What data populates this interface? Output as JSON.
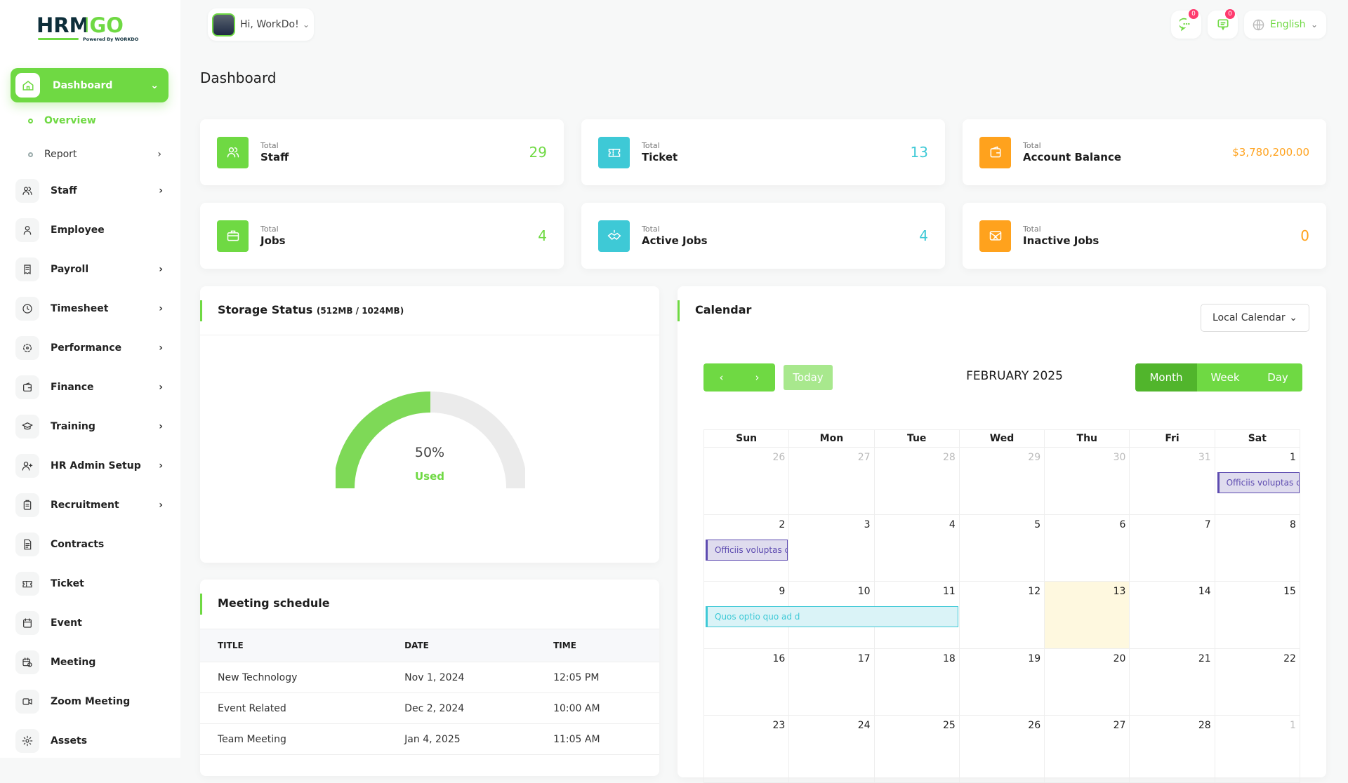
{
  "brand": {
    "name": "HRMGO",
    "tagline": "Powered By WORKDO"
  },
  "header": {
    "greeting": "Hi, WorkDo!",
    "messages_badge": "0",
    "notifications_badge": "0",
    "language": "English"
  },
  "sidebar": {
    "active": {
      "label": "Dashboard",
      "icon": "home-icon"
    },
    "sub_items": [
      {
        "label": "Overview",
        "active": true
      },
      {
        "label": "Report",
        "has_children": true
      }
    ],
    "items": [
      {
        "label": "Staff",
        "icon": "users-icon",
        "has_children": true
      },
      {
        "label": "Employee",
        "icon": "user-icon",
        "has_children": false
      },
      {
        "label": "Payroll",
        "icon": "receipt-icon",
        "has_children": true
      },
      {
        "label": "Timesheet",
        "icon": "clock-icon",
        "has_children": true
      },
      {
        "label": "Performance",
        "icon": "performance-icon",
        "has_children": true
      },
      {
        "label": "Finance",
        "icon": "wallet-icon",
        "has_children": true
      },
      {
        "label": "Training",
        "icon": "graduation-cap-icon",
        "has_children": true
      },
      {
        "label": "HR Admin Setup",
        "icon": "user-plus-icon",
        "has_children": true
      },
      {
        "label": "Recruitment",
        "icon": "clipboard-icon",
        "has_children": true
      },
      {
        "label": "Contracts",
        "icon": "contract-icon",
        "has_children": false
      },
      {
        "label": "Ticket",
        "icon": "ticket-icon",
        "has_children": false
      },
      {
        "label": "Event",
        "icon": "calendar-icon",
        "has_children": false
      },
      {
        "label": "Meeting",
        "icon": "calendar-clock-icon",
        "has_children": false
      },
      {
        "label": "Zoom Meeting",
        "icon": "video-icon",
        "has_children": false
      },
      {
        "label": "Assets",
        "icon": "gear-icon",
        "has_children": false
      }
    ]
  },
  "page": {
    "title": "Dashboard"
  },
  "stats": [
    {
      "small": "Total",
      "label": "Staff",
      "value": "29",
      "color": "#6fd943",
      "icon": "users-icon"
    },
    {
      "small": "Total",
      "label": "Ticket",
      "value": "13",
      "color": "#3ec9d6",
      "icon": "ticket-icon"
    },
    {
      "small": "Total",
      "label": "Account Balance",
      "value": "$3,780,200.00",
      "color": "#ffa21d",
      "icon": "wallet-icon"
    },
    {
      "small": "Total",
      "label": "Jobs",
      "value": "4",
      "color": "#6fd943",
      "icon": "briefcase-icon"
    },
    {
      "small": "Total",
      "label": "Active Jobs",
      "value": "4",
      "color": "#3ec9d6",
      "icon": "handshake-icon"
    },
    {
      "small": "Total",
      "label": "Inactive Jobs",
      "value": "0",
      "color": "#ffa21d",
      "icon": "envelope-x-icon"
    }
  ],
  "storage": {
    "title": "Storage Status",
    "detail": "(512MB / 1024MB)",
    "percent": 50,
    "percent_label": "50%",
    "used_label": "Used"
  },
  "meetings": {
    "title": "Meeting schedule",
    "columns": [
      "TITLE",
      "DATE",
      "TIME"
    ],
    "rows": [
      [
        "New Technology",
        "Nov 1, 2024",
        "12:05 PM"
      ],
      [
        "Event Related",
        "Dec 2, 2024",
        "10:00 AM"
      ],
      [
        "Team Meeting",
        "Jan 4, 2025",
        "11:05 AM"
      ]
    ]
  },
  "calendar": {
    "title": "Calendar",
    "source": "Local Calendar",
    "month_label": "FEBRUARY 2025",
    "today_label": "Today",
    "views": [
      "Month",
      "Week",
      "Day"
    ],
    "active_view": "Month",
    "weekdays": [
      "Sun",
      "Mon",
      "Tue",
      "Wed",
      "Thu",
      "Fri",
      "Sat"
    ],
    "weeks": [
      [
        "26",
        "27",
        "28",
        "29",
        "30",
        "31",
        "1"
      ],
      [
        "2",
        "3",
        "4",
        "5",
        "6",
        "7",
        "8"
      ],
      [
        "9",
        "10",
        "11",
        "12",
        "13",
        "14",
        "15"
      ],
      [
        "16",
        "17",
        "18",
        "19",
        "20",
        "21",
        "22"
      ],
      [
        "23",
        "24",
        "25",
        "26",
        "27",
        "28",
        "1"
      ]
    ],
    "today": "13",
    "events": [
      {
        "title": "Officiis voluptas c",
        "week": 0,
        "start": 6,
        "span": 1,
        "color": "purple"
      },
      {
        "title": "Officiis voluptas c",
        "week": 1,
        "start": 0,
        "span": 1,
        "color": "purple"
      },
      {
        "title": "Quos optio quo ad d",
        "week": 2,
        "start": 0,
        "span": 3,
        "color": "cyan"
      }
    ]
  }
}
